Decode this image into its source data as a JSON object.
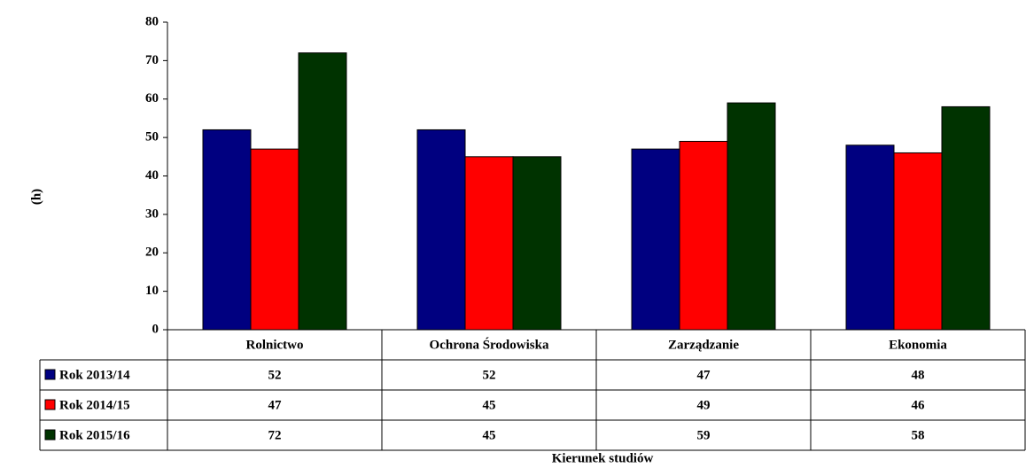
{
  "chart_data": {
    "type": "bar",
    "y_label": "(h)",
    "x_label": "Kierunek studiów",
    "categories": [
      "Rolnictwo",
      "Ochrona Środowiska",
      "Zarządzanie",
      "Ekonomia"
    ],
    "series": [
      {
        "name": "Rok 2013/14",
        "color": "#000080",
        "values": [
          52,
          52,
          47,
          48
        ]
      },
      {
        "name": "Rok 2014/15",
        "color": "#ff0000",
        "values": [
          47,
          45,
          49,
          46
        ]
      },
      {
        "name": "Rok 2015/16",
        "color": "#003300",
        "values": [
          72,
          45,
          59,
          58
        ]
      }
    ],
    "ylim": [
      0,
      80
    ],
    "yticks": [
      0,
      10,
      20,
      30,
      40,
      50,
      60,
      70,
      80
    ],
    "grid": false,
    "data_table": true
  }
}
